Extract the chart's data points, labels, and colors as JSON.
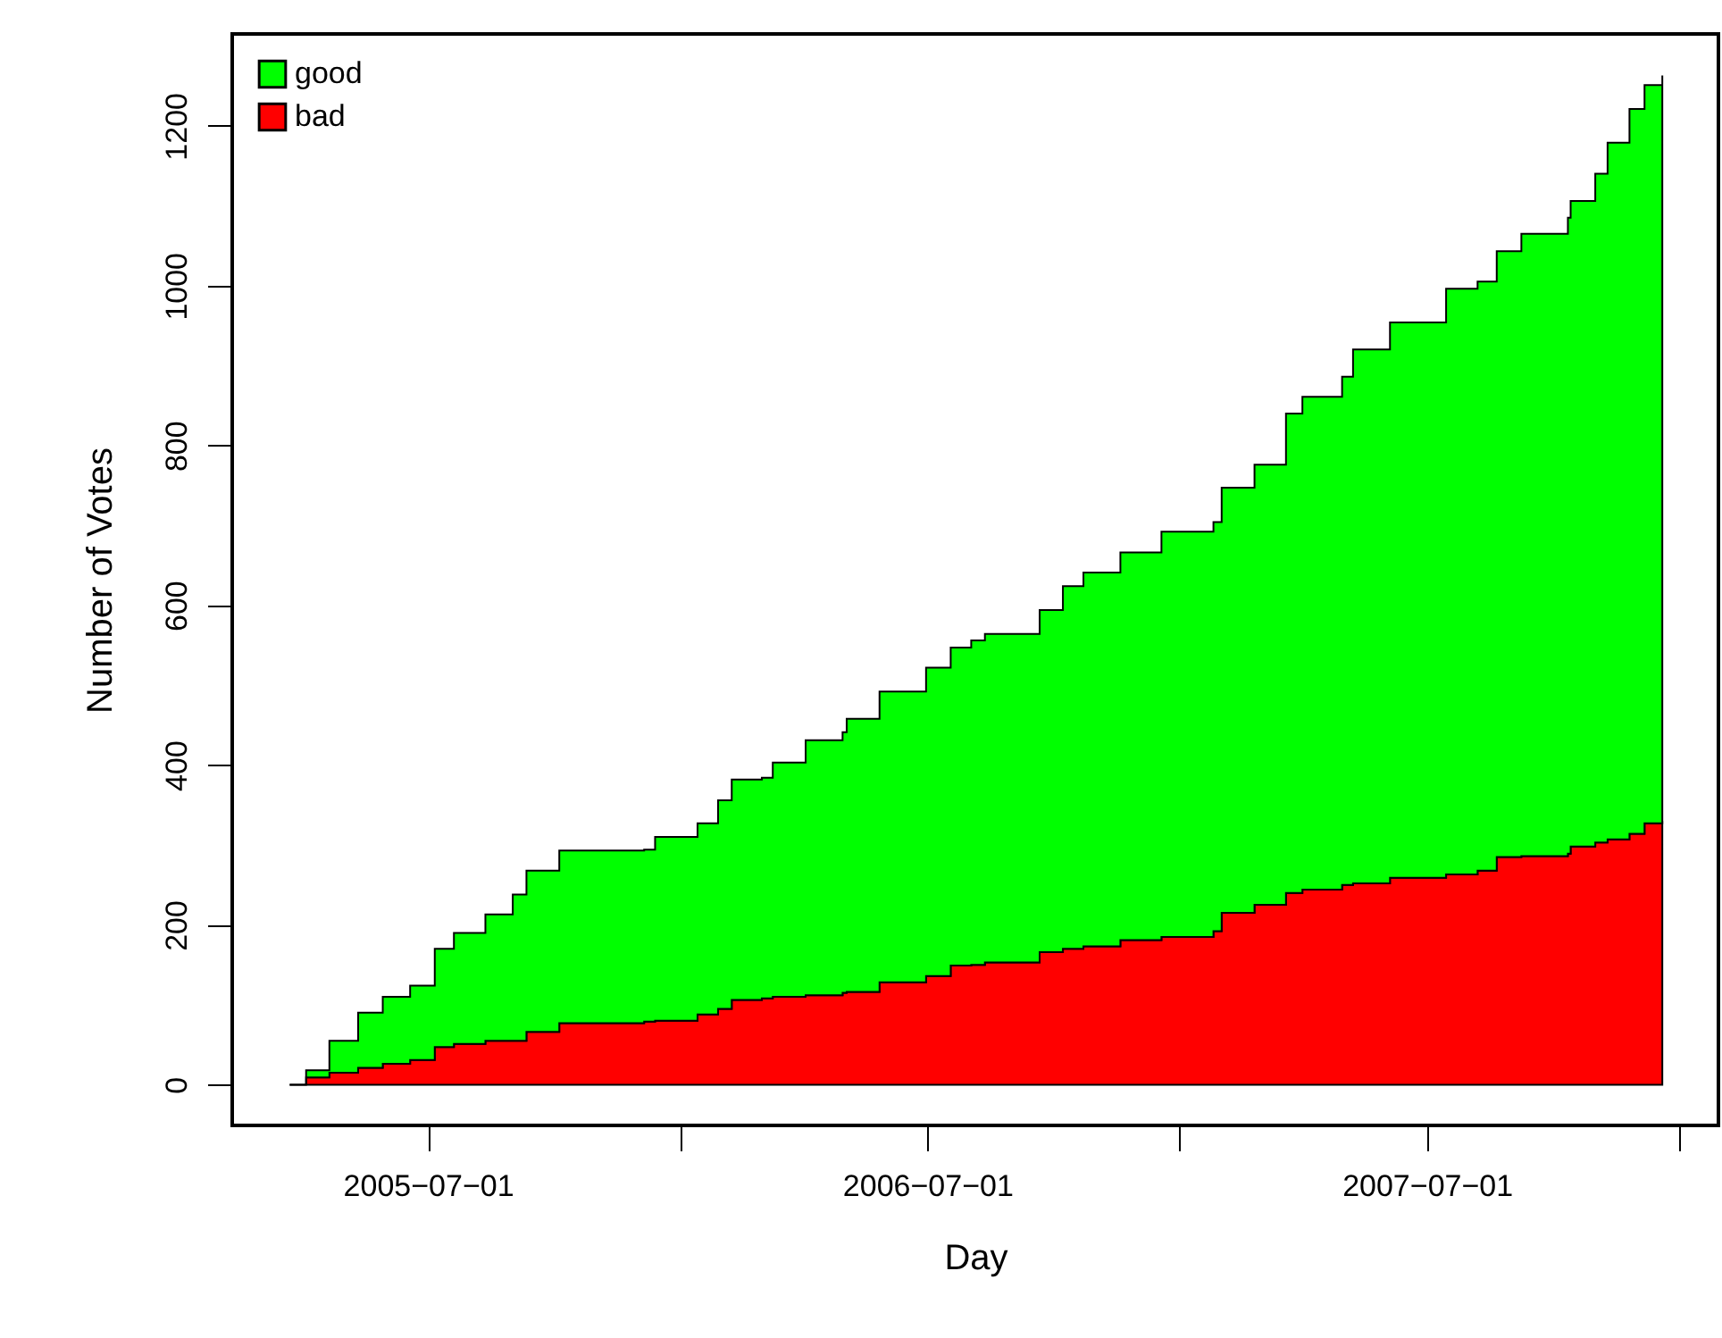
{
  "chart_data": {
    "type": "area",
    "stacked": true,
    "xlabel": "Day",
    "ylabel": "Number of Votes",
    "x": [
      "2005-03-22",
      "2005-04-03",
      "2005-04-20",
      "2005-05-11",
      "2005-05-29",
      "2005-06-18",
      "2005-07-06",
      "2005-07-20",
      "2005-08-12",
      "2005-09-01",
      "2005-09-11",
      "2005-10-05",
      "2005-12-06",
      "2005-12-14",
      "2006-01-14",
      "2006-01-29",
      "2006-02-08",
      "2006-03-02",
      "2006-03-10",
      "2006-04-03",
      "2006-04-30",
      "2006-05-03",
      "2006-05-27",
      "2006-06-30",
      "2006-07-18",
      "2006-08-02",
      "2006-08-12",
      "2006-09-21",
      "2006-10-08",
      "2006-10-23",
      "2006-11-19",
      "2006-12-19",
      "2007-01-26",
      "2007-02-01",
      "2007-02-25",
      "2007-03-20",
      "2007-04-01",
      "2007-04-30",
      "2007-05-08",
      "2007-06-04",
      "2007-07-15",
      "2007-08-07",
      "2007-08-21",
      "2007-09-08",
      "2007-10-12",
      "2007-10-14",
      "2007-11-01",
      "2007-11-10",
      "2007-11-26",
      "2007-12-07",
      "2007-12-20"
    ],
    "series": [
      {
        "name": "bad",
        "color": "#ff0000",
        "values": [
          0,
          9,
          15,
          21,
          26,
          31,
          47,
          51,
          55,
          55,
          66,
          77,
          79,
          80,
          88,
          95,
          106,
          108,
          110,
          112,
          115,
          116,
          128,
          136,
          149,
          150,
          153,
          166,
          170,
          173,
          181,
          185,
          192,
          215,
          225,
          240,
          244,
          250,
          252,
          259,
          263,
          268,
          285,
          286,
          289,
          298,
          303,
          307,
          314,
          327,
          330
        ]
      },
      {
        "name": "good",
        "color": "#00ff00",
        "values": [
          0,
          9,
          40,
          69,
          84,
          93,
          123,
          139,
          158,
          183,
          202,
          216,
          215,
          230,
          239,
          261,
          276,
          276,
          293,
          319,
          326,
          342,
          364,
          386,
          398,
          406,
          411,
          428,
          454,
          468,
          485,
          507,
          512,
          532,
          551,
          600,
          617,
          636,
          668,
          695,
          733,
          737,
          758,
          779,
          796,
          808,
          837,
          872,
          907,
          924,
          933
        ]
      }
    ],
    "xlim": [
      "2005-02-08",
      "2008-01-30"
    ],
    "xticks": [
      {
        "value": "2005-07-01",
        "label": "2005−07−01"
      },
      {
        "value": "2006-01-01",
        "label": null
      },
      {
        "value": "2006-07-01",
        "label": "2006−07−01"
      },
      {
        "value": "2007-01-01",
        "label": null
      },
      {
        "value": "2007-07-01",
        "label": "2007−07−01"
      },
      {
        "value": "2008-01-01",
        "label": null
      }
    ],
    "ylim": [
      -51,
      1315
    ],
    "yticks": [
      0,
      200,
      400,
      600,
      800,
      1000,
      1200
    ],
    "legend": "top left",
    "grid": false
  }
}
